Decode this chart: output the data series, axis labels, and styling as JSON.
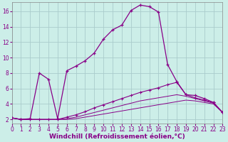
{
  "xlabel": "Windchill (Refroidissement éolien,°C)",
  "background_color": "#cceee8",
  "grid_color": "#aacccc",
  "line_color": "#880088",
  "xlim": [
    0,
    23
  ],
  "ylim": [
    1.5,
    17.2
  ],
  "xticks": [
    0,
    1,
    2,
    3,
    4,
    5,
    6,
    7,
    8,
    9,
    10,
    11,
    12,
    13,
    14,
    15,
    16,
    17,
    18,
    19,
    20,
    21,
    22,
    23
  ],
  "yticks": [
    2,
    4,
    6,
    8,
    10,
    12,
    14,
    16
  ],
  "line1_x": [
    0,
    1,
    2,
    3,
    4,
    5,
    6,
    7,
    8,
    9,
    10,
    11,
    12,
    13,
    14,
    15,
    16,
    17,
    18,
    19,
    20,
    21,
    22,
    23
  ],
  "line1_y": [
    2.2,
    2.0,
    2.1,
    8.0,
    7.2,
    2.1,
    8.3,
    8.9,
    9.6,
    10.6,
    12.4,
    13.6,
    14.2,
    16.1,
    16.8,
    16.6,
    15.9,
    9.1,
    6.9,
    5.2,
    5.1,
    4.7,
    4.2,
    2.9
  ],
  "line2_x": [
    0,
    1,
    2,
    3,
    4,
    5,
    6,
    7,
    8,
    9,
    10,
    11,
    12,
    13,
    14,
    15,
    16,
    17,
    18,
    19,
    20,
    21,
    22,
    23
  ],
  "line2_y": [
    2.2,
    2.0,
    2.0,
    2.0,
    2.0,
    2.0,
    2.3,
    2.6,
    3.0,
    3.5,
    3.9,
    4.3,
    4.7,
    5.1,
    5.5,
    5.8,
    6.1,
    6.5,
    6.8,
    5.2,
    4.8,
    4.5,
    4.2,
    2.9
  ],
  "line3_x": [
    0,
    1,
    2,
    3,
    4,
    5,
    6,
    7,
    8,
    9,
    10,
    11,
    12,
    13,
    14,
    15,
    16,
    17,
    18,
    19,
    20,
    21,
    22,
    23
  ],
  "line3_y": [
    2.2,
    2.0,
    2.0,
    2.0,
    2.0,
    2.0,
    2.1,
    2.3,
    2.6,
    2.9,
    3.2,
    3.5,
    3.8,
    4.1,
    4.4,
    4.6,
    4.8,
    5.0,
    5.2,
    5.0,
    4.7,
    4.4,
    4.1,
    2.9
  ],
  "line4_x": [
    0,
    1,
    2,
    3,
    4,
    5,
    6,
    7,
    8,
    9,
    10,
    11,
    12,
    13,
    14,
    15,
    16,
    17,
    18,
    19,
    20,
    21,
    22,
    23
  ],
  "line4_y": [
    2.2,
    2.0,
    2.0,
    2.0,
    2.0,
    2.0,
    2.0,
    2.1,
    2.3,
    2.5,
    2.7,
    2.9,
    3.1,
    3.3,
    3.5,
    3.7,
    3.9,
    4.1,
    4.3,
    4.5,
    4.4,
    4.2,
    4.0,
    2.9
  ],
  "tick_fontsize": 5.5,
  "label_fontsize": 6.5
}
